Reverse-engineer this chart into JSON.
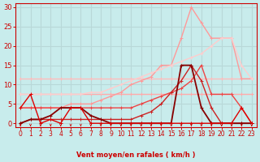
{
  "bg_color": "#c8ecec",
  "grid_color": "#aacccc",
  "xlabel": "Vent moyen/en rafales ( km/h )",
  "xlabel_color": "#cc0000",
  "tick_color": "#cc0000",
  "xlim": [
    -0.5,
    23.5
  ],
  "ylim": [
    -1,
    31
  ],
  "yticks": [
    0,
    5,
    10,
    15,
    20,
    25,
    30
  ],
  "xticks": [
    0,
    1,
    2,
    3,
    4,
    5,
    6,
    7,
    8,
    9,
    10,
    11,
    12,
    13,
    14,
    15,
    16,
    17,
    18,
    19,
    20,
    21,
    22,
    23
  ],
  "series": [
    {
      "x": [
        0,
        1,
        2,
        3,
        4,
        5,
        6,
        7,
        8,
        9,
        10,
        11,
        12,
        13,
        14,
        15,
        16,
        17,
        18,
        19,
        20,
        21,
        22,
        23
      ],
      "y": [
        11.5,
        11.5,
        11.5,
        11.5,
        11.5,
        11.5,
        11.5,
        11.5,
        11.5,
        11.5,
        11.5,
        11.5,
        11.5,
        11.5,
        11.5,
        11.5,
        11.5,
        11.5,
        11.5,
        11.5,
        11.5,
        11.5,
        11.5,
        11.5
      ],
      "color": "#ffbbbb",
      "lw": 1.0,
      "marker": "+"
    },
    {
      "x": [
        0,
        1,
        2,
        3,
        4,
        5,
        6,
        7,
        8,
        9,
        10,
        11,
        12,
        13,
        14,
        15,
        16,
        17,
        18,
        19,
        20,
        21,
        22,
        23
      ],
      "y": [
        7.5,
        7.5,
        7.5,
        7.5,
        7.5,
        7.5,
        7.5,
        7.5,
        7.5,
        7.5,
        7.5,
        7.5,
        7.5,
        7.5,
        7.5,
        7.5,
        7.5,
        7.5,
        7.5,
        7.5,
        7.5,
        7.5,
        7.5,
        7.5
      ],
      "color": "#ffaaaa",
      "lw": 1.0,
      "marker": "+"
    },
    {
      "x": [
        0,
        1,
        2,
        3,
        4,
        5,
        6,
        7,
        8,
        9,
        10,
        11,
        12,
        13,
        14,
        15,
        16,
        17,
        18,
        19,
        20,
        21,
        22,
        23
      ],
      "y": [
        4,
        4,
        4,
        4,
        4,
        5,
        5,
        5,
        6,
        7,
        8,
        10,
        11,
        12,
        15,
        15,
        22,
        30,
        26,
        22,
        22,
        22,
        11.5,
        11.5
      ],
      "color": "#ff9999",
      "lw": 1.0,
      "marker": "+"
    },
    {
      "x": [
        0,
        1,
        2,
        3,
        4,
        5,
        6,
        7,
        8,
        9,
        10,
        11,
        12,
        13,
        14,
        15,
        16,
        17,
        18,
        19,
        20,
        21,
        22,
        23
      ],
      "y": [
        7.5,
        7.5,
        7.5,
        7.5,
        7.5,
        7.5,
        7.5,
        8,
        8,
        9,
        10,
        11,
        12,
        13,
        14,
        15,
        16,
        17,
        18,
        20,
        22,
        22,
        15,
        11.5
      ],
      "color": "#ffcccc",
      "lw": 1.0,
      "marker": "+"
    },
    {
      "x": [
        0,
        1,
        2,
        3,
        4,
        5,
        6,
        7,
        8,
        9,
        10,
        11,
        12,
        13,
        14,
        15,
        16,
        17,
        18,
        19,
        20,
        21,
        22,
        23
      ],
      "y": [
        4,
        4,
        4,
        4,
        4,
        4,
        4,
        4,
        4,
        4,
        4,
        4,
        5,
        6,
        7,
        8,
        9,
        11,
        15,
        7.5,
        7.5,
        7.5,
        4,
        0
      ],
      "color": "#ee4444",
      "lw": 1.0,
      "marker": "+"
    },
    {
      "x": [
        0,
        1,
        2,
        3,
        4,
        5,
        6,
        7,
        8,
        9,
        10,
        11,
        12,
        13,
        14,
        15,
        16,
        17,
        18,
        19,
        20,
        21,
        22,
        23
      ],
      "y": [
        0,
        1,
        1,
        1,
        1,
        1,
        1,
        1,
        1,
        1,
        1,
        1,
        2,
        3,
        5,
        8,
        11,
        15,
        11,
        4,
        0,
        0,
        0,
        0
      ],
      "color": "#cc2222",
      "lw": 1.0,
      "marker": "+"
    },
    {
      "x": [
        0,
        1,
        2,
        3,
        4,
        5,
        6,
        7,
        8,
        9,
        10,
        11,
        12,
        13,
        14,
        15,
        16,
        17,
        18,
        19,
        20,
        21,
        22,
        23
      ],
      "y": [
        0,
        1,
        1,
        2,
        4,
        4,
        4,
        2,
        1,
        0,
        0,
        0,
        0,
        0,
        0,
        0,
        15,
        15,
        4,
        0,
        0,
        0,
        0,
        0
      ],
      "color": "#880000",
      "lw": 1.3,
      "marker": "+"
    },
    {
      "x": [
        0,
        1,
        2,
        3,
        4,
        5,
        6,
        7,
        8,
        9,
        10,
        11,
        12,
        13,
        14,
        15,
        16,
        17,
        18,
        19,
        20,
        21,
        22,
        23
      ],
      "y": [
        4,
        7.5,
        0,
        1,
        0,
        4,
        4,
        0,
        0,
        0,
        0,
        0,
        0,
        0,
        0,
        0,
        0,
        0,
        0,
        0,
        0,
        0,
        4,
        0
      ],
      "color": "#dd0000",
      "lw": 1.0,
      "marker": "+"
    }
  ]
}
